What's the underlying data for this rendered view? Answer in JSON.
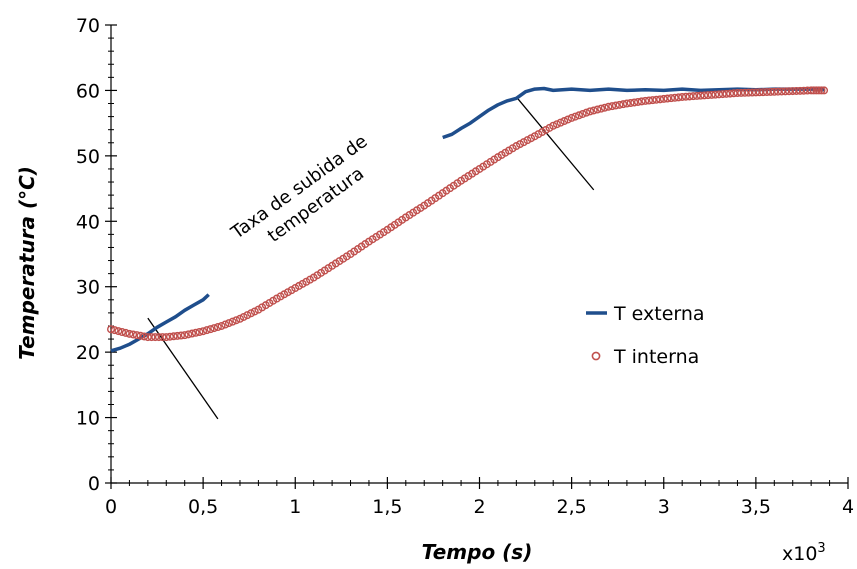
{
  "chart_data": {
    "type": "scatter",
    "xlabel": "Tempo (s)",
    "ylabel": "Temperatura (°C)",
    "x_multiplier_label": "x10",
    "x_multiplier_exp": "3",
    "xlim": [
      0,
      4
    ],
    "ylim": [
      0,
      70
    ],
    "x_ticks": [
      0,
      0.5,
      1,
      1.5,
      2,
      2.5,
      3,
      3.5,
      4
    ],
    "x_tick_labels": [
      "0",
      "0,5",
      "1",
      "1,5",
      "2",
      "2,5",
      "3",
      "3,5",
      "4"
    ],
    "y_ticks": [
      0,
      10,
      20,
      30,
      40,
      50,
      60,
      70
    ],
    "y_tick_labels": [
      "0",
      "10",
      "20",
      "30",
      "40",
      "50",
      "60",
      "70"
    ],
    "grid": false,
    "legend_position": "right",
    "annotation_lines": [
      "Taxa de subida de",
      "temperatura"
    ],
    "series": [
      {
        "name": "T externa",
        "style": "line",
        "color": "#1f4e8c",
        "segments": [
          [
            [
              0.0,
              20.2
            ],
            [
              0.05,
              20.6
            ],
            [
              0.1,
              21.2
            ],
            [
              0.15,
              22.0
            ],
            [
              0.2,
              22.8
            ],
            [
              0.25,
              23.8
            ],
            [
              0.3,
              24.6
            ],
            [
              0.35,
              25.4
            ],
            [
              0.4,
              26.4
            ],
            [
              0.45,
              27.2
            ],
            [
              0.5,
              28.0
            ],
            [
              0.53,
              28.8
            ]
          ],
          [
            [
              1.8,
              52.8
            ],
            [
              1.85,
              53.3
            ],
            [
              1.9,
              54.2
            ],
            [
              1.95,
              55.0
            ],
            [
              2.0,
              56.0
            ],
            [
              2.05,
              57.0
            ],
            [
              2.1,
              57.8
            ],
            [
              2.15,
              58.4
            ],
            [
              2.2,
              58.8
            ],
            [
              2.25,
              59.8
            ],
            [
              2.3,
              60.2
            ],
            [
              2.35,
              60.3
            ],
            [
              2.4,
              60.0
            ],
            [
              2.5,
              60.2
            ],
            [
              2.6,
              60.0
            ],
            [
              2.7,
              60.2
            ],
            [
              2.8,
              60.0
            ],
            [
              2.9,
              60.1
            ],
            [
              3.0,
              60.0
            ],
            [
              3.1,
              60.2
            ],
            [
              3.2,
              60.0
            ],
            [
              3.3,
              60.1
            ],
            [
              3.4,
              60.2
            ],
            [
              3.5,
              60.1
            ],
            [
              3.6,
              60.2
            ],
            [
              3.7,
              60.2
            ],
            [
              3.8,
              60.2
            ],
            [
              3.87,
              60.1
            ]
          ]
        ]
      },
      {
        "name": "T interna",
        "style": "markers",
        "color": "#c0504d",
        "x": [
          0.0,
          0.1,
          0.2,
          0.3,
          0.4,
          0.5,
          0.6,
          0.7,
          0.8,
          0.9,
          1.0,
          1.1,
          1.2,
          1.3,
          1.4,
          1.5,
          1.6,
          1.7,
          1.8,
          1.9,
          2.0,
          2.1,
          2.2,
          2.3,
          2.4,
          2.5,
          2.6,
          2.7,
          2.8,
          2.9,
          3.0,
          3.1,
          3.2,
          3.3,
          3.4,
          3.5,
          3.6,
          3.7,
          3.8,
          3.87
        ],
        "y": [
          23.5,
          22.8,
          22.3,
          22.3,
          22.6,
          23.2,
          24.0,
          25.1,
          26.5,
          28.2,
          29.8,
          31.4,
          33.2,
          35.0,
          36.9,
          38.7,
          40.6,
          42.4,
          44.3,
          46.2,
          48.0,
          49.8,
          51.5,
          53.0,
          54.6,
          55.8,
          56.8,
          57.5,
          58.0,
          58.4,
          58.7,
          59.0,
          59.2,
          59.4,
          59.6,
          59.7,
          59.8,
          59.9,
          60.0,
          60.0
        ]
      }
    ],
    "guide_lines": [
      {
        "x1": 0.2,
        "y1": 25.2,
        "x2": 0.58,
        "y2": 9.8
      },
      {
        "x1": 2.2,
        "y1": 59.0,
        "x2": 2.62,
        "y2": 44.8
      }
    ]
  }
}
